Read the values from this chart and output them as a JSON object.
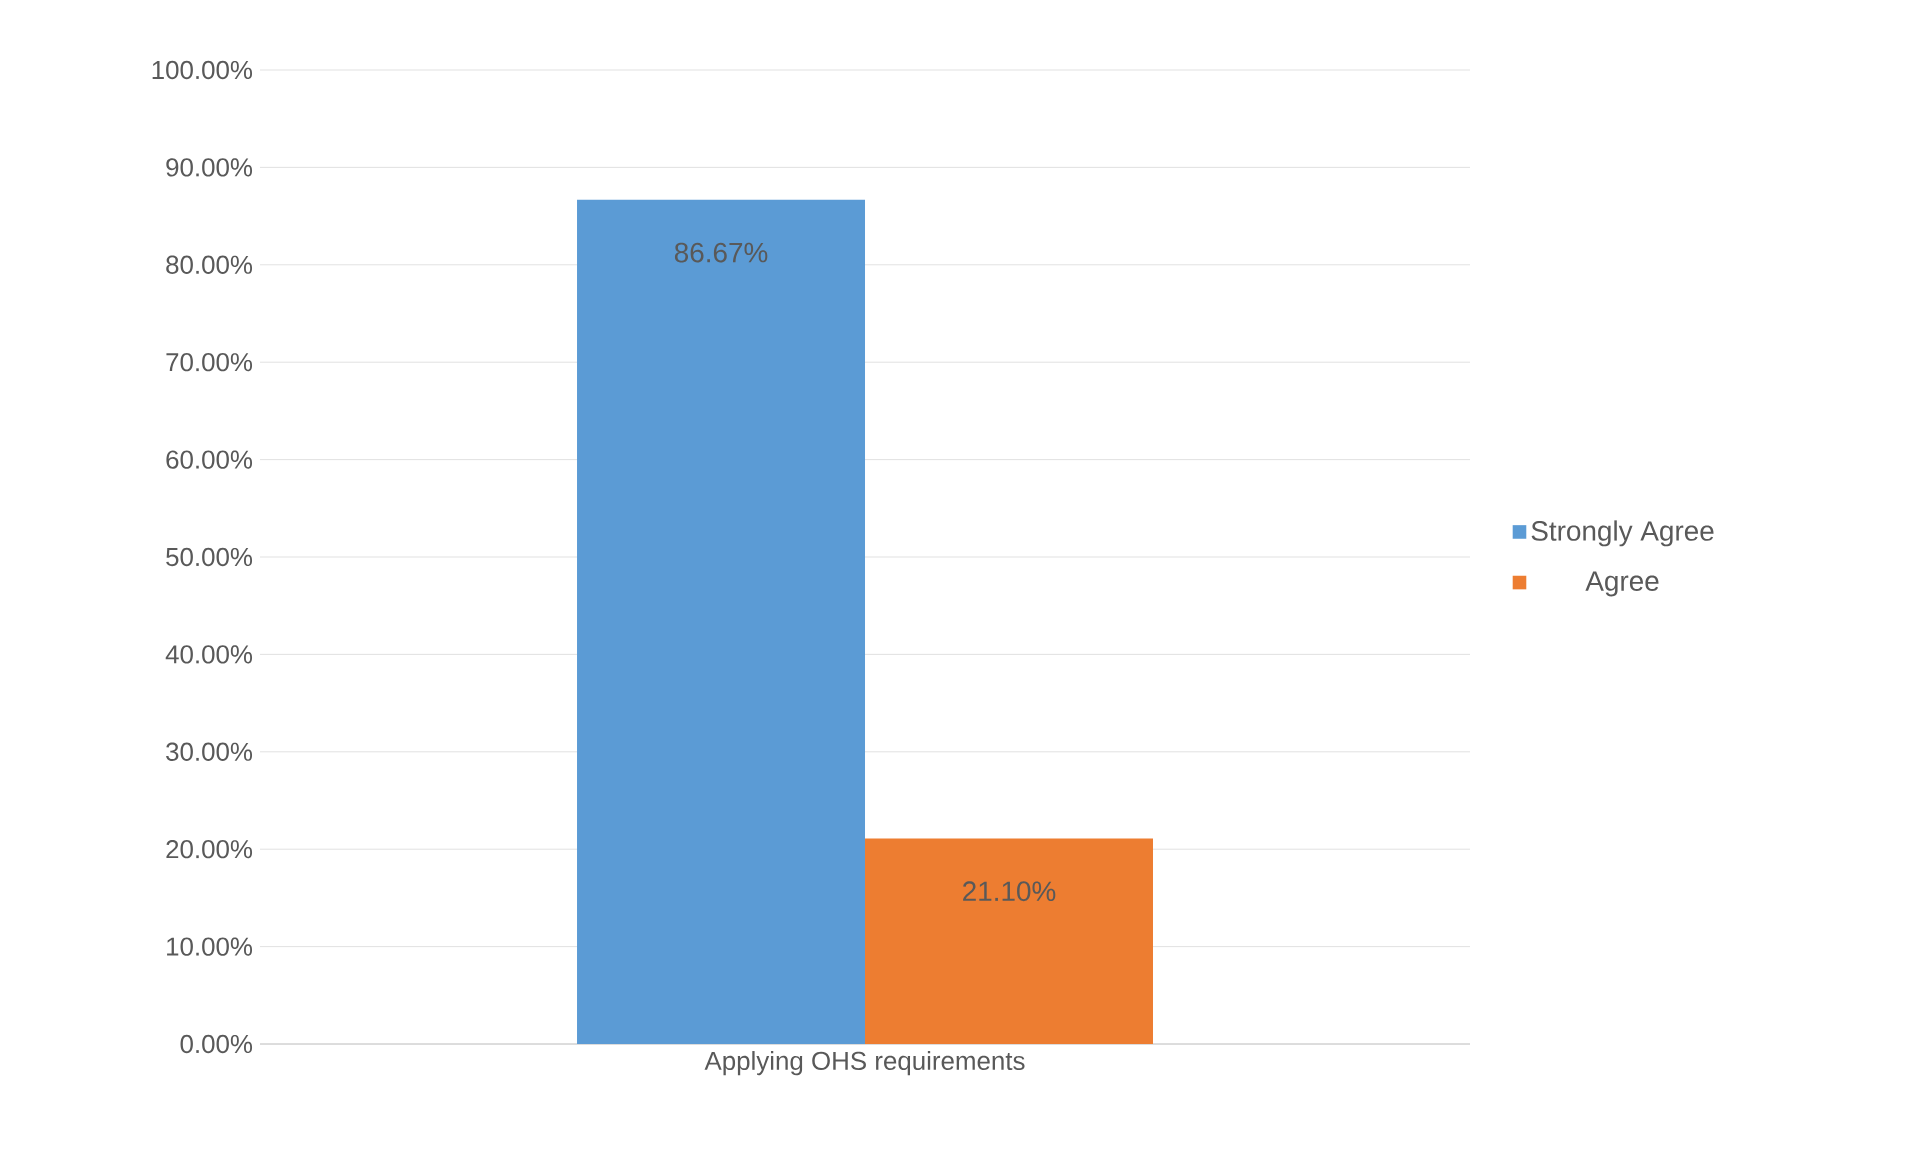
{
  "chart_data": {
    "type": "bar",
    "categories": [
      "Applying OHS requirements"
    ],
    "series": [
      {
        "name": "Strongly Agree",
        "color": "#5b9bd5",
        "values": [
          86.67
        ],
        "value_labels": [
          "86.67%"
        ]
      },
      {
        "name": "Agree",
        "color": "#ed7d31",
        "values": [
          21.1
        ],
        "value_labels": [
          "21.10%"
        ]
      }
    ],
    "ylim": [
      0,
      100
    ],
    "yticks": [
      {
        "value": 0,
        "label": "0.00%"
      },
      {
        "value": 10,
        "label": "10.00%"
      },
      {
        "value": 20,
        "label": "20.00%"
      },
      {
        "value": 30,
        "label": "30.00%"
      },
      {
        "value": 40,
        "label": "40.00%"
      },
      {
        "value": 50,
        "label": "50.00%"
      },
      {
        "value": 60,
        "label": "60.00%"
      },
      {
        "value": 70,
        "label": "70.00%"
      },
      {
        "value": 80,
        "label": "80.00%"
      },
      {
        "value": 90,
        "label": "90.00%"
      },
      {
        "value": 100,
        "label": "100.00%"
      }
    ],
    "grid": "y",
    "legend": "right"
  }
}
